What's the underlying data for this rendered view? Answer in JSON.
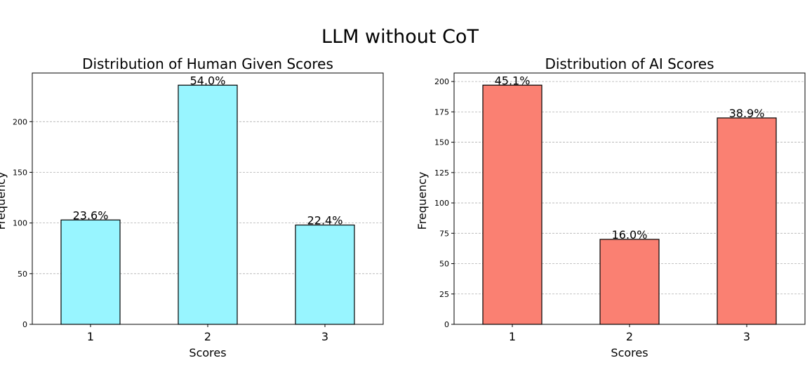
{
  "suptitle": "LLM without CoT",
  "chart_data": [
    {
      "type": "bar",
      "title": "Distribution of Human Given Scores",
      "xlabel": "Scores",
      "ylabel": "Frequency",
      "categories": [
        "1",
        "2",
        "3"
      ],
      "values": [
        103,
        236,
        98
      ],
      "bar_labels": [
        "23.6%",
        "54.0%",
        "22.4%"
      ],
      "yticks": [
        0,
        50,
        100,
        150,
        200
      ],
      "ylim": [
        0,
        248
      ],
      "grid": "y-dashed",
      "bar_color": "#98F5FF"
    },
    {
      "type": "bar",
      "title": "Distribution of AI Scores",
      "xlabel": "Scores",
      "ylabel": "Frequency",
      "categories": [
        "1",
        "2",
        "3"
      ],
      "values": [
        197,
        70,
        170
      ],
      "bar_labels": [
        "45.1%",
        "16.0%",
        "38.9%"
      ],
      "yticks": [
        0,
        25,
        50,
        75,
        100,
        125,
        150,
        175,
        200
      ],
      "ylim": [
        0,
        207
      ],
      "grid": "y-dashed",
      "bar_color": "#FA8072"
    }
  ]
}
